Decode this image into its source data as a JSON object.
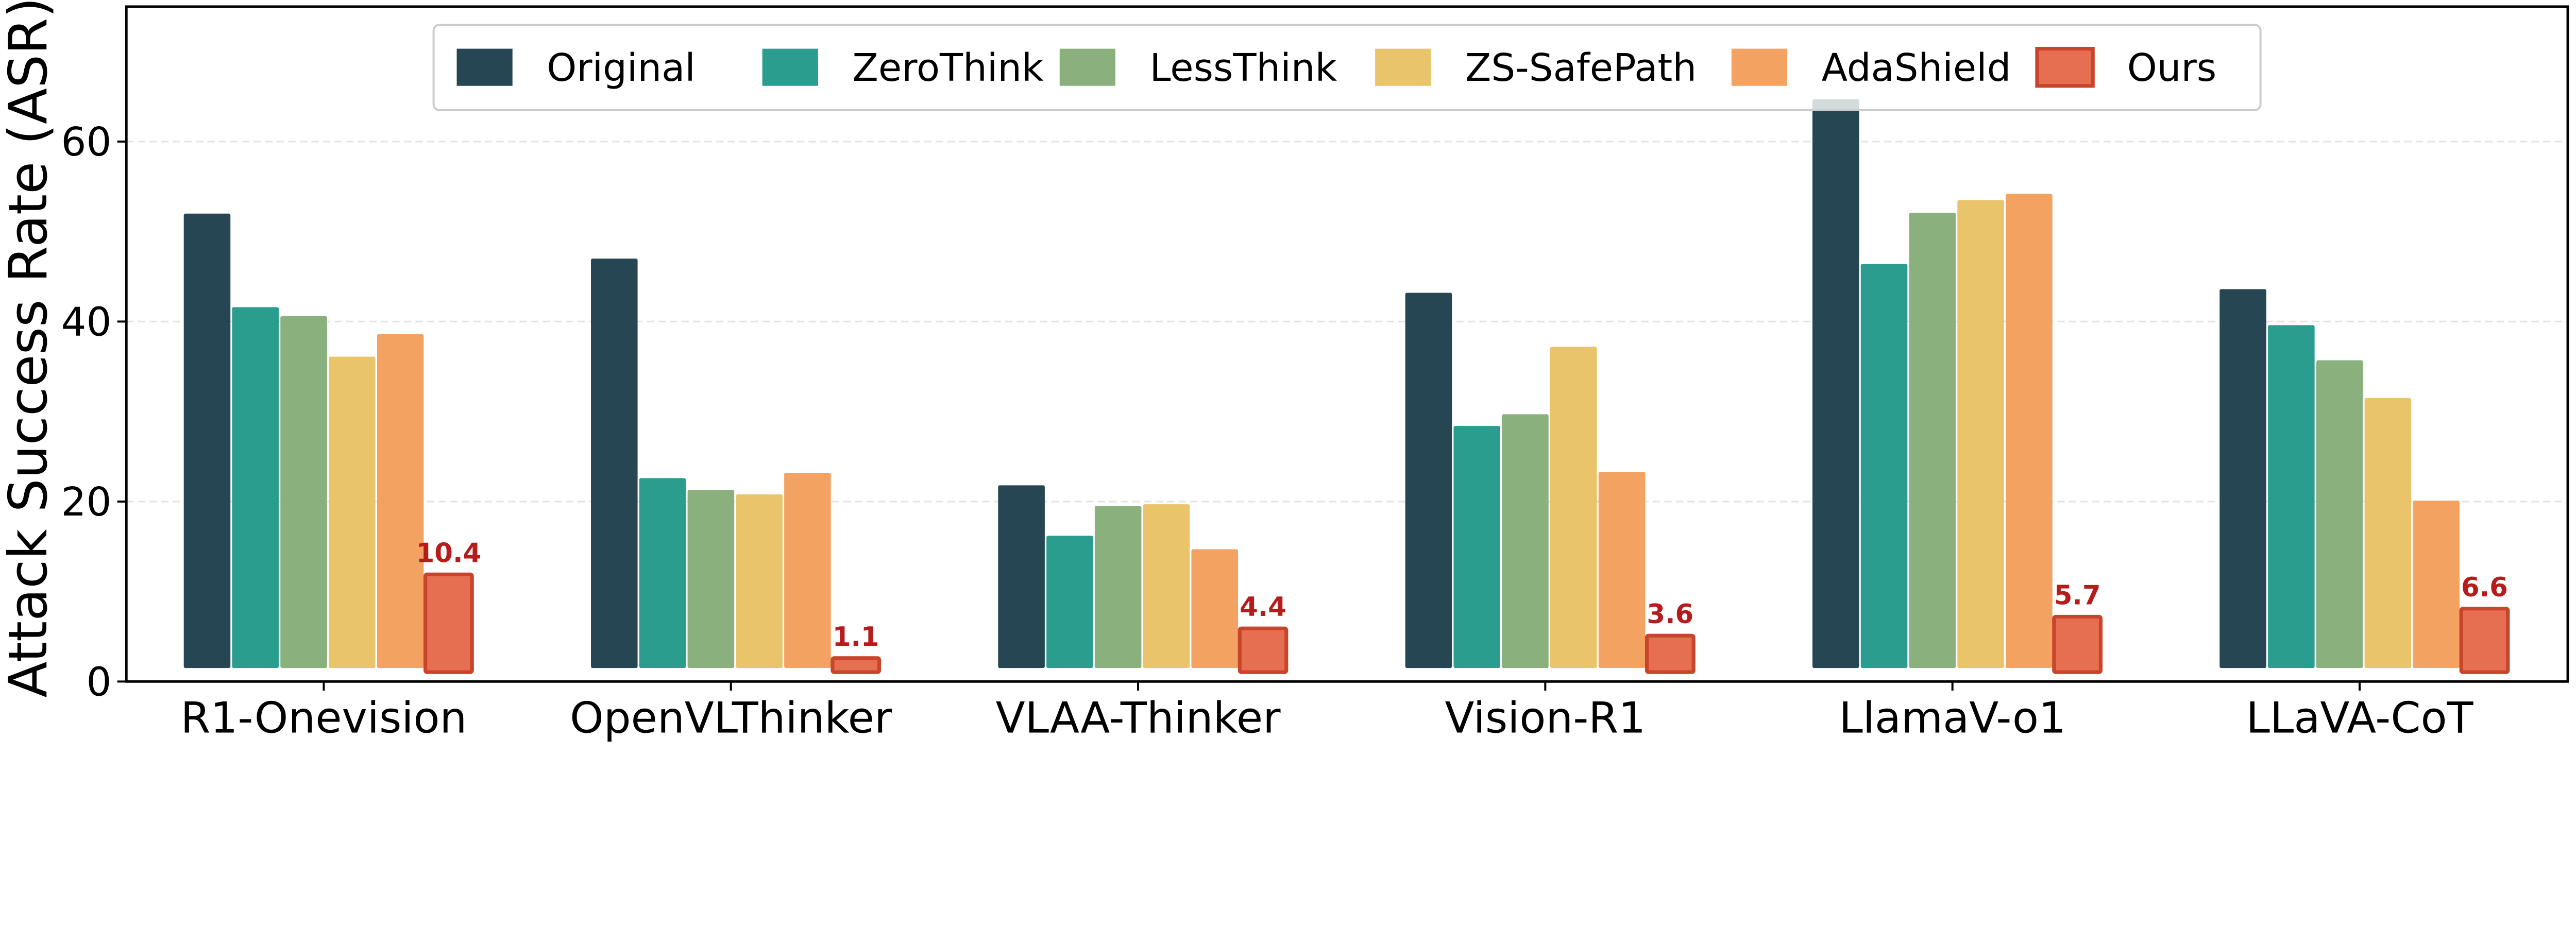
{
  "chart_data": {
    "type": "bar",
    "title": "",
    "xlabel": "",
    "ylabel": "Attack Success Rate (ASR) %",
    "ylim": [
      0,
      75
    ],
    "yticks": [
      0,
      20,
      40,
      60
    ],
    "grid": "horizontal dashed",
    "legend_placement": "top-center",
    "categories": [
      "R1-Onevision",
      "OpenVLThinker",
      "VLAA-Thinker",
      "Vision-R1",
      "LlamaV-o1",
      "LLaVA-CoT"
    ],
    "series": [
      {
        "name": "Original",
        "color": "#264653",
        "values": [
          50.5,
          45.5,
          20.3,
          41.7,
          63.2,
          42.1
        ]
      },
      {
        "name": "ZeroThink",
        "color": "#2a9d8f",
        "values": [
          40.1,
          21.1,
          14.7,
          26.9,
          44.9,
          38.1
        ]
      },
      {
        "name": "LessThink",
        "color": "#8ab17d",
        "values": [
          39.1,
          19.8,
          18.0,
          28.2,
          50.6,
          34.2
        ]
      },
      {
        "name": "ZS-SafePath",
        "color": "#e9c46a",
        "values": [
          34.6,
          19.3,
          18.2,
          35.7,
          52.0,
          30.0
        ]
      },
      {
        "name": "AdaShield",
        "color": "#f4a261",
        "values": [
          37.1,
          21.7,
          13.2,
          21.8,
          52.7,
          18.6
        ]
      },
      {
        "name": "Ours",
        "color": "#e76f51",
        "edge_color": "#c8442c",
        "values": [
          10.4,
          1.1,
          4.4,
          3.6,
          5.7,
          6.6
        ],
        "data_labels": [
          "10.4",
          "1.1",
          "4.4",
          "3.6",
          "5.7",
          "6.6"
        ],
        "data_label_color": "#b71c1c"
      }
    ]
  }
}
